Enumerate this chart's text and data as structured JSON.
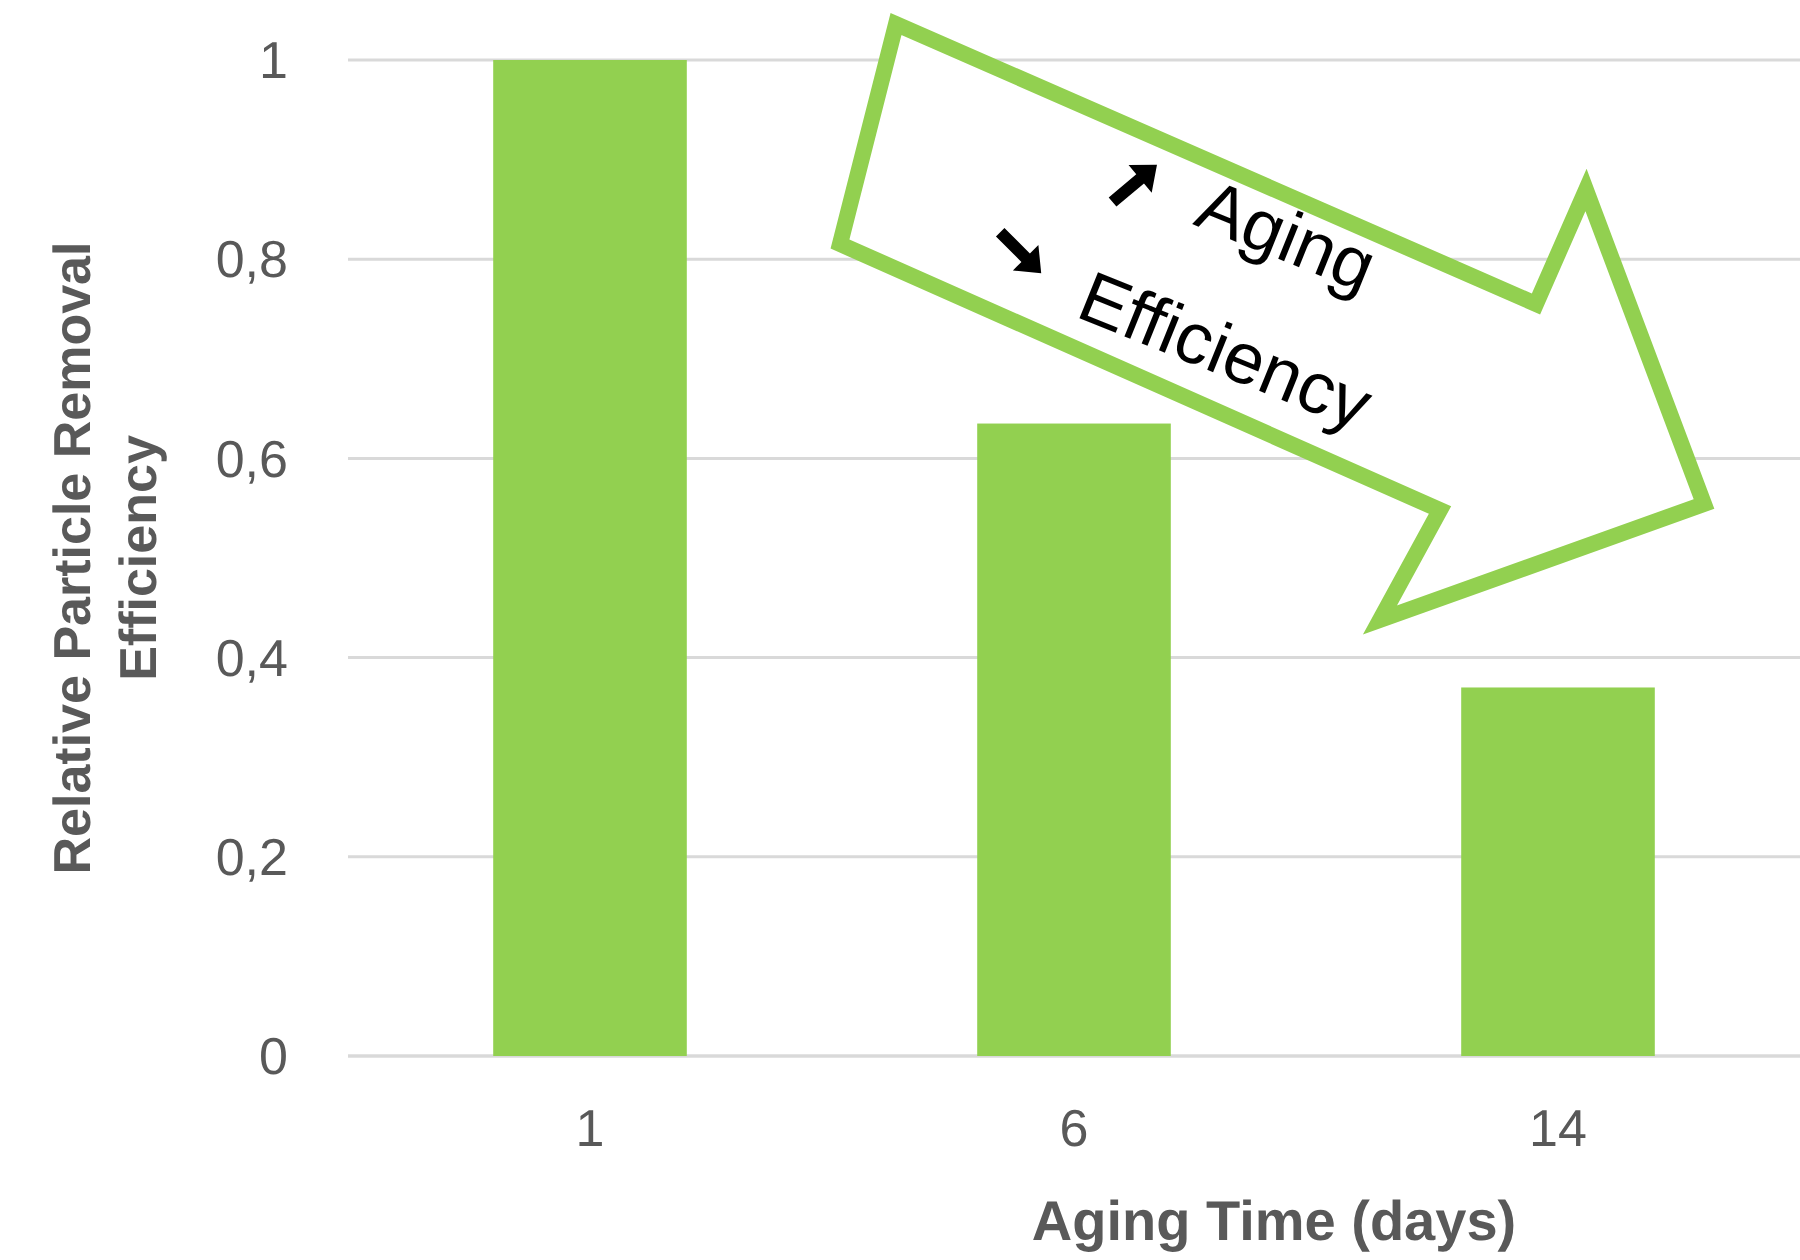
{
  "chart_data": {
    "type": "bar",
    "xlabel": "Aging Time (days)",
    "ylabel": "Relative Particle Removal Efficiency",
    "categories": [
      "1",
      "6",
      "14"
    ],
    "values": [
      1,
      0.635,
      0.37
    ],
    "color": "#92d050",
    "ylim": [
      0,
      1
    ],
    "yticks": [
      0,
      {
        "value": 0.2,
        "label": "0,2"
      },
      {
        "value": 0.4,
        "label": "0,4"
      },
      {
        "value": 0.6,
        "label": "0,6"
      },
      {
        "value": 0.8,
        "label": "0,8"
      },
      1
    ],
    "grid": "y",
    "annotations": [
      "Aging",
      "Efficiency"
    ]
  }
}
